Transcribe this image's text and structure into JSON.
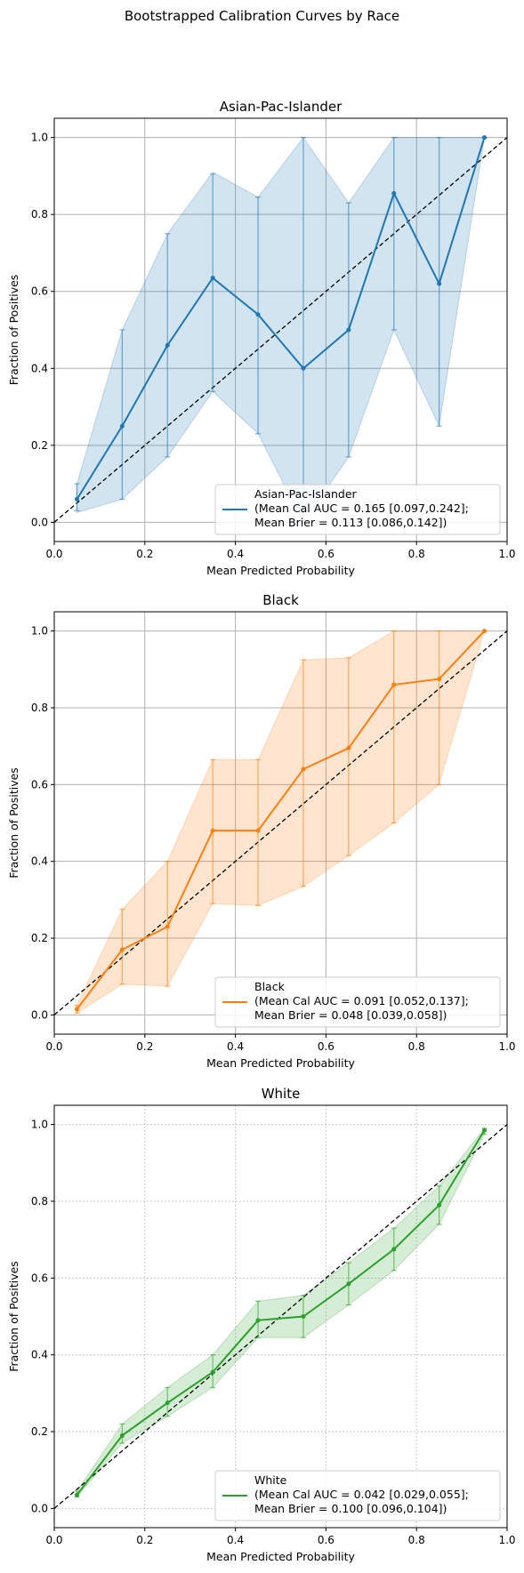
{
  "suptitle": "Bootstrapped Calibration Curves by Race",
  "chart_data": [
    {
      "type": "line",
      "title": "Asian-Pac-Islander",
      "xlabel": "Mean Predicted Probability",
      "ylabel": "Fraction of Positives",
      "xlim": [
        0,
        1
      ],
      "ylim": [
        -0.05,
        1.05
      ],
      "xticks": [
        "0.0",
        "0.2",
        "0.4",
        "0.6",
        "0.8",
        "1.0"
      ],
      "yticks": [
        "0.0",
        "0.2",
        "0.4",
        "0.6",
        "0.8",
        "1.0"
      ],
      "grid": "solid",
      "legend_position": "lower-right",
      "color": "#1f77b4",
      "legend_lines": [
        "Asian-Pac-Islander",
        "(Mean Cal AUC = 0.165 [0.097,0.242];",
        "Mean Brier = 0.113 [0.086,0.142])"
      ],
      "x": [
        0.05,
        0.15,
        0.25,
        0.35,
        0.45,
        0.55,
        0.65,
        0.75,
        0.85,
        0.95
      ],
      "y": [
        0.06,
        0.25,
        0.46,
        0.635,
        0.54,
        0.4,
        0.5,
        0.855,
        0.62,
        1.0
      ],
      "err_low": [
        0.03,
        0.06,
        0.17,
        0.34,
        0.23,
        0.0,
        0.17,
        0.5,
        0.25,
        1.0
      ],
      "err_high": [
        0.1,
        0.5,
        0.75,
        0.905,
        0.845,
        1.0,
        0.83,
        1.0,
        1.0,
        1.0
      ],
      "band_low": [
        0.025,
        0.06,
        0.17,
        0.34,
        0.23,
        0.0,
        0.17,
        0.5,
        0.25,
        1.0
      ],
      "band_high": [
        0.1,
        0.5,
        0.75,
        0.91,
        0.845,
        1.0,
        0.83,
        1.0,
        1.0,
        1.0
      ]
    },
    {
      "type": "line",
      "title": "Black",
      "xlabel": "Mean Predicted Probability",
      "ylabel": "Fraction of Positives",
      "xlim": [
        0,
        1
      ],
      "ylim": [
        -0.05,
        1.05
      ],
      "xticks": [
        "0.0",
        "0.2",
        "0.4",
        "0.6",
        "0.8",
        "1.0"
      ],
      "yticks": [
        "0.0",
        "0.2",
        "0.4",
        "0.6",
        "0.8",
        "1.0"
      ],
      "grid": "solid",
      "legend_position": "lower-right",
      "color": "#ff7f0e",
      "legend_lines": [
        "Black",
        "(Mean Cal AUC = 0.091 [0.052,0.137];",
        "Mean Brier = 0.048 [0.039,0.058])"
      ],
      "x": [
        0.05,
        0.15,
        0.25,
        0.35,
        0.45,
        0.55,
        0.65,
        0.75,
        0.85,
        0.95
      ],
      "y": [
        0.015,
        0.17,
        0.23,
        0.48,
        0.48,
        0.64,
        0.695,
        0.86,
        0.875,
        1.0
      ],
      "err_low": [
        0.005,
        0.08,
        0.075,
        0.29,
        0.285,
        0.335,
        0.415,
        0.5,
        0.6,
        1.0
      ],
      "err_high": [
        0.025,
        0.275,
        0.4,
        0.665,
        0.665,
        0.925,
        0.93,
        1.0,
        1.0,
        1.0
      ],
      "band_low": [
        0.005,
        0.08,
        0.075,
        0.29,
        0.285,
        0.335,
        0.415,
        0.5,
        0.6,
        1.0
      ],
      "band_high": [
        0.025,
        0.275,
        0.4,
        0.665,
        0.665,
        0.925,
        0.93,
        1.0,
        1.0,
        1.0
      ]
    },
    {
      "type": "line",
      "title": "White",
      "xlabel": "Mean Predicted Probability",
      "ylabel": "Fraction of Positives",
      "xlim": [
        0,
        1
      ],
      "ylim": [
        -0.05,
        1.05
      ],
      "xticks": [
        "0.0",
        "0.2",
        "0.4",
        "0.6",
        "0.8",
        "1.0"
      ],
      "yticks": [
        "0.0",
        "0.2",
        "0.4",
        "0.6",
        "0.8",
        "1.0"
      ],
      "grid": "dotted",
      "legend_position": "lower-right",
      "color": "#2ca02c",
      "legend_lines": [
        "White",
        "(Mean Cal AUC = 0.042 [0.029,0.055];",
        "Mean Brier = 0.100 [0.096,0.104])"
      ],
      "x": [
        0.05,
        0.15,
        0.25,
        0.35,
        0.45,
        0.55,
        0.65,
        0.75,
        0.85,
        0.95
      ],
      "y": [
        0.035,
        0.19,
        0.275,
        0.355,
        0.49,
        0.5,
        0.585,
        0.675,
        0.79,
        0.985
      ],
      "err_low": [
        0.03,
        0.17,
        0.24,
        0.315,
        0.445,
        0.445,
        0.53,
        0.62,
        0.74,
        0.975
      ],
      "err_high": [
        0.045,
        0.22,
        0.315,
        0.4,
        0.54,
        0.555,
        0.64,
        0.73,
        0.84,
        0.99
      ],
      "band_low": [
        0.03,
        0.17,
        0.24,
        0.315,
        0.445,
        0.445,
        0.53,
        0.62,
        0.74,
        0.975
      ],
      "band_high": [
        0.045,
        0.22,
        0.315,
        0.4,
        0.54,
        0.555,
        0.64,
        0.73,
        0.84,
        0.99
      ]
    }
  ]
}
